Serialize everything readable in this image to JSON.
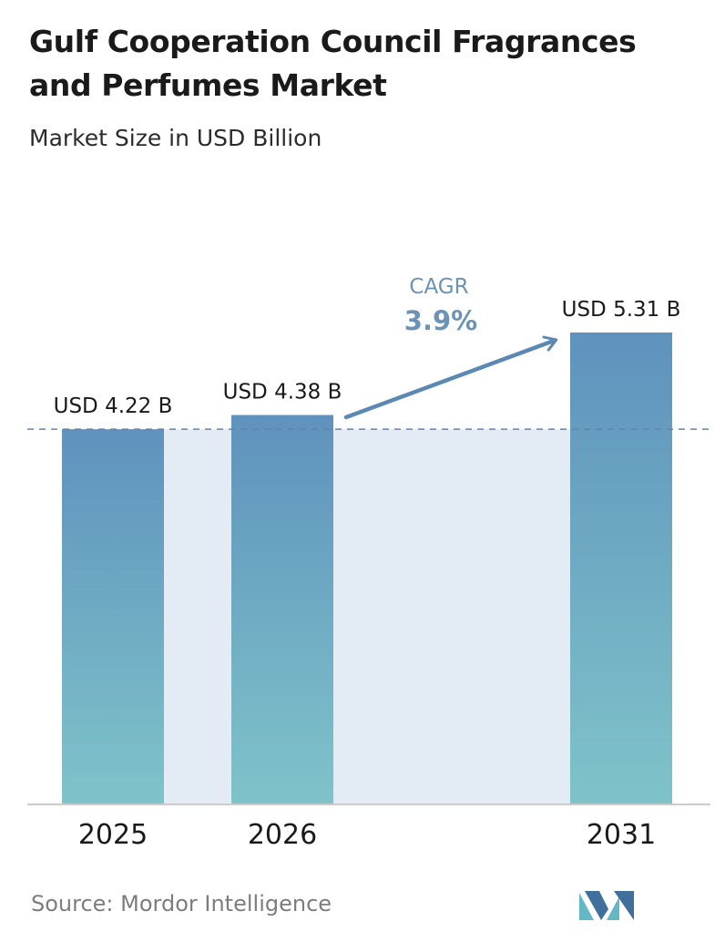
{
  "header": {
    "title": "Gulf Cooperation Council Fragrances and Perfumes Market",
    "subtitle": "Market Size in USD Billion"
  },
  "cagr": {
    "label": "CAGR",
    "value": "3.9%"
  },
  "footer": {
    "source": "Source:  Mordor Intelligence"
  },
  "colors": {
    "bar_top": "#5f92bd",
    "bar_bottom": "#7fc3c9",
    "band": "#e3ecf5",
    "arrow": "#5b89b4",
    "cagr_text": "#6c93b6",
    "dashed_line": "#5f85ab",
    "axis": "#cccccc",
    "logo_dark": "#3f6f9a",
    "logo_light": "#62b8c5"
  },
  "chart_data": {
    "type": "bar",
    "title": "Gulf Cooperation Council Fragrances and Perfumes Market",
    "subtitle": "Market Size in USD Billion",
    "categories": [
      "2025",
      "2026",
      "2031"
    ],
    "values": [
      4.22,
      4.38,
      5.31
    ],
    "value_labels": [
      "USD 4.22 B",
      "USD 4.38 B",
      "USD 5.31 B"
    ],
    "ylim": [
      0,
      6.45
    ],
    "reference_line": 4.22,
    "cagr": "3.9%",
    "grid": false
  }
}
